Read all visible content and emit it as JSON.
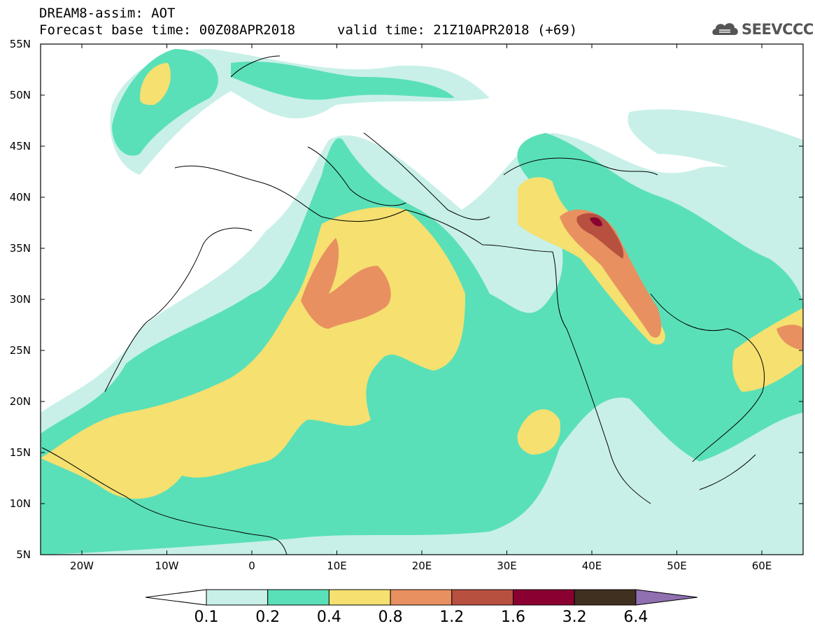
{
  "title_line1": "DREAM8-assim: AOT",
  "title_line2": "Forecast base time: 00Z08APR2018",
  "title_valid": "valid time: 21Z10APR2018 (+69)",
  "logo_text": "SEEVCCC",
  "lat_labels": [
    "55N",
    "50N",
    "45N",
    "40N",
    "35N",
    "30N",
    "25N",
    "20N",
    "15N",
    "10N",
    "5N"
  ],
  "lon_labels": [
    "20W",
    "10W",
    "0",
    "10E",
    "20E",
    "30E",
    "40E",
    "50E",
    "60E"
  ],
  "colorbar": {
    "labels": [
      "0.1",
      "0.2",
      "0.4",
      "0.8",
      "1.2",
      "1.6",
      "3.2",
      "6.4"
    ],
    "colors": [
      "#ffffff",
      "#c8f0e8",
      "#5ae0b8",
      "#f5e070",
      "#e89060",
      "#b85040",
      "#8a0030",
      "#403020",
      "#9070b0"
    ]
  },
  "map_colors": {
    "low": "#c8f0e8",
    "mid": "#5ae0b8",
    "high": "#f5e070",
    "higher": "#e89060",
    "very_high": "#b85040",
    "extreme": "#8a0030"
  }
}
